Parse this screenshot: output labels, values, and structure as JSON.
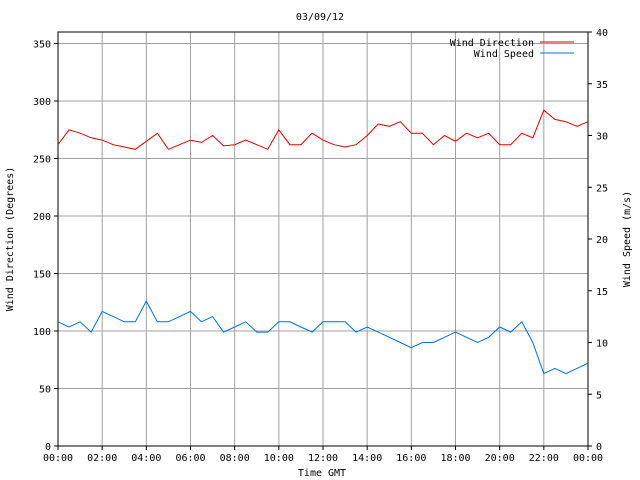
{
  "chart_data": {
    "type": "line",
    "title": "03/09/12",
    "xlabel": "Time GMT",
    "ylabel_left": "Wind Direction (Degrees)",
    "ylabel_right": "Wind Speed (m/s)",
    "x_ticks": [
      "00:00",
      "02:00",
      "04:00",
      "06:00",
      "08:00",
      "10:00",
      "12:00",
      "14:00",
      "16:00",
      "18:00",
      "20:00",
      "22:00",
      "00:00"
    ],
    "x_range_hours": [
      0,
      24
    ],
    "y_left_ticks": [
      0,
      50,
      100,
      150,
      200,
      250,
      300,
      350
    ],
    "y_left_range": [
      0,
      360
    ],
    "y_right_ticks": [
      0,
      5,
      10,
      15,
      20,
      25,
      30,
      35,
      40
    ],
    "y_right_range": [
      0,
      40
    ],
    "grid": true,
    "legend_position": "top-right",
    "series": [
      {
        "name": "Wind Direction",
        "axis": "left",
        "color": "#e00000",
        "x_hours": [
          0,
          0.5,
          1,
          1.5,
          2,
          2.5,
          3,
          3.5,
          4,
          4.5,
          5,
          5.5,
          6,
          6.5,
          7,
          7.5,
          8,
          8.5,
          9,
          9.5,
          10,
          10.5,
          11,
          11.5,
          12,
          12.5,
          13,
          13.5,
          14,
          14.5,
          15,
          15.5,
          16,
          16.5,
          17,
          17.5,
          18,
          18.5,
          19,
          19.5,
          20,
          20.5,
          21,
          21.5,
          22,
          22.5,
          23,
          23.5,
          24
        ],
        "values": [
          262,
          275,
          272,
          268,
          266,
          262,
          260,
          258,
          265,
          272,
          258,
          262,
          266,
          264,
          270,
          261,
          262,
          266,
          262,
          258,
          275,
          262,
          262,
          272,
          266,
          262,
          260,
          262,
          270,
          280,
          278,
          282,
          272,
          272,
          262,
          270,
          265,
          272,
          268,
          272,
          262,
          262,
          272,
          268,
          292,
          284,
          282,
          278,
          282
        ]
      },
      {
        "name": "Wind Speed",
        "axis": "right",
        "color": "#0070e0",
        "x_hours": [
          0,
          0.5,
          1,
          1.5,
          2,
          2.5,
          3,
          3.5,
          4,
          4.5,
          5,
          5.5,
          6,
          6.5,
          7,
          7.5,
          8,
          8.5,
          9,
          9.5,
          10,
          10.5,
          11,
          11.5,
          12,
          12.5,
          13,
          13.5,
          14,
          14.5,
          15,
          15.5,
          16,
          16.5,
          17,
          17.5,
          18,
          18.5,
          19,
          19.5,
          20,
          20.5,
          21,
          21.5,
          22,
          22.5,
          23,
          23.5,
          24
        ],
        "values": [
          12,
          11.5,
          12,
          11,
          13,
          12.5,
          12,
          12,
          14,
          12,
          12,
          12.5,
          13,
          12,
          12.5,
          11,
          11.5,
          12,
          11,
          11,
          12,
          12,
          11.5,
          11,
          12,
          12,
          12,
          11,
          11.5,
          11,
          10.5,
          10,
          9.5,
          10,
          10,
          10.5,
          11,
          10.5,
          10,
          10.5,
          11.5,
          11,
          12,
          10,
          7,
          7.5,
          7,
          7.5,
          8
        ]
      }
    ]
  }
}
